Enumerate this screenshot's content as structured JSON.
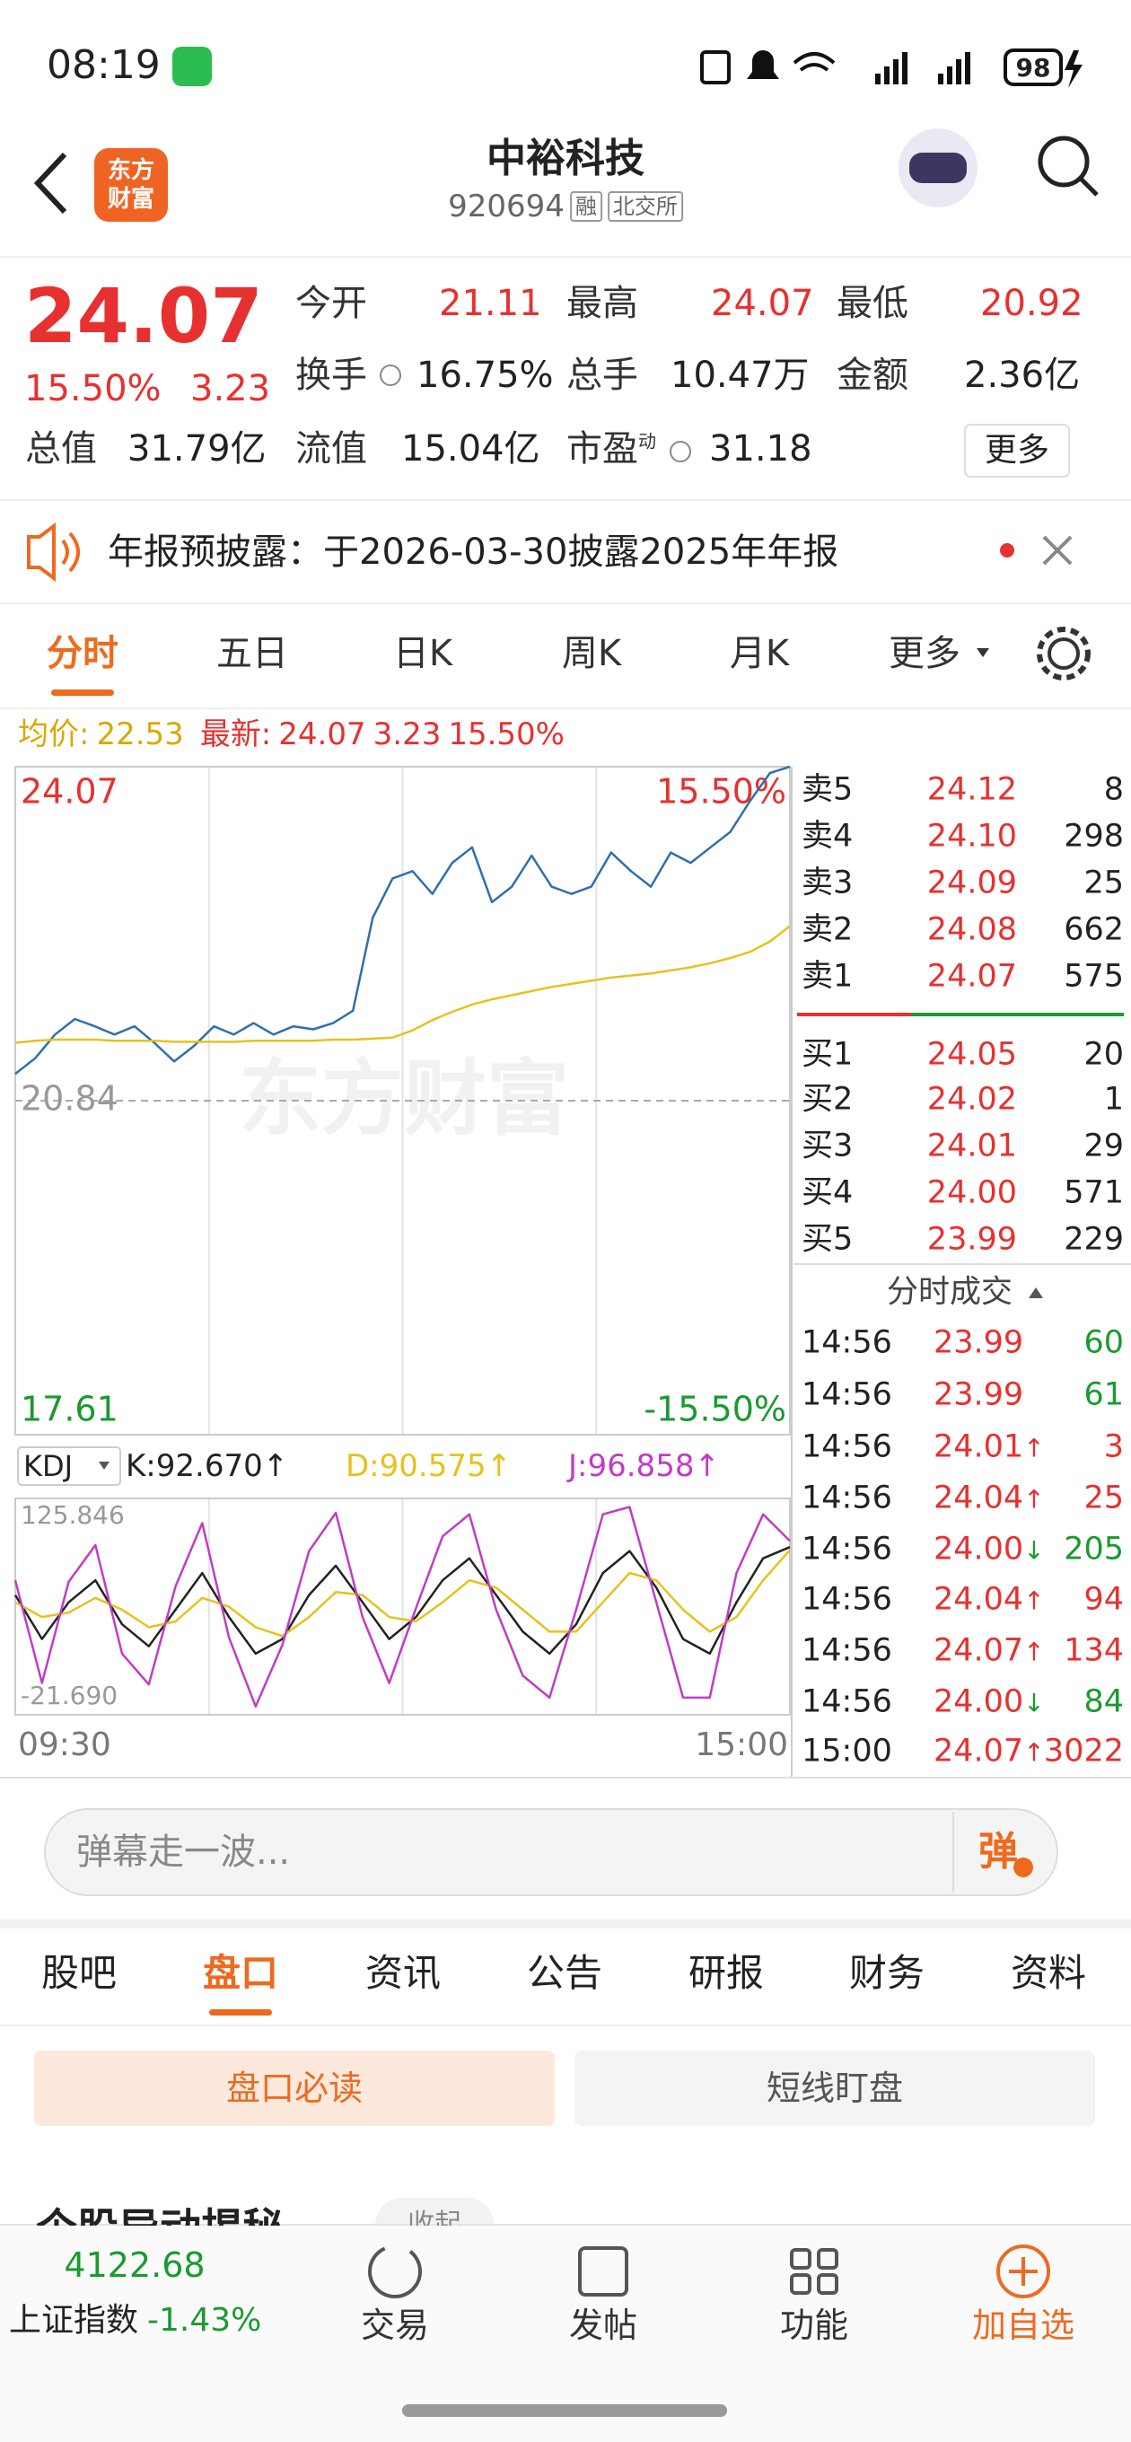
{
  "status_bar": {
    "time": "08:19",
    "battery": "98"
  },
  "header": {
    "logo": [
      "东方",
      "财富"
    ],
    "title": "中裕科技",
    "code": "920694",
    "tags": [
      "融",
      "北交所"
    ]
  },
  "quote": {
    "price": "24.07",
    "change_pct": "15.50%",
    "change": "3.23",
    "color": "#e63130",
    "fields": [
      {
        "label": "今开",
        "value": "21.11",
        "color": "#e63130"
      },
      {
        "label": "最高",
        "value": "24.07",
        "color": "#e63130"
      },
      {
        "label": "最低",
        "value": "20.92",
        "color": "#e63130"
      },
      {
        "label": "换手",
        "value": "16.75%"
      },
      {
        "label": "总手",
        "value": "10.47万"
      },
      {
        "label": "金额",
        "value": "2.36亿"
      },
      {
        "label": "总值",
        "value": "31.79亿"
      },
      {
        "label": "流值",
        "value": "15.04亿"
      },
      {
        "label": "市盈",
        "sup": "动",
        "value": "31.18"
      }
    ],
    "more": "更多"
  },
  "notice": {
    "text": "年报预披露：于2026-03-30披露2025年年报"
  },
  "tabs": {
    "items": [
      "分时",
      "五日",
      "日K",
      "周K",
      "月K",
      "更多"
    ],
    "active": 0
  },
  "chart_data": [
    {
      "type": "line",
      "watermark": "东方财富",
      "info": {
        "avg_label": "均价:",
        "avg": "22.53",
        "avg_color": "#d9a900",
        "latest_label": "最新:",
        "latest": "24.07",
        "change": "3.23",
        "change_pct": "15.50%",
        "latest_color": "#e63130"
      },
      "ylim": [
        17.61,
        24.07
      ],
      "yticks": [
        24.07,
        20.84,
        17.61
      ],
      "y2lim": [
        -15.5,
        15.5
      ],
      "y2ticks": [
        {
          "value": 15.5,
          "label": "15.50%"
        },
        {
          "value": -15.5,
          "label": "-15.50%"
        }
      ],
      "up_color": "#e63130",
      "down_color": "#1a9a2f",
      "flat_color": "#999999",
      "series": [
        {
          "color": "#2f6fb0",
          "values": [
            21.1,
            21.25,
            21.48,
            21.63,
            21.56,
            21.48,
            21.56,
            21.4,
            21.22,
            21.37,
            21.56,
            21.48,
            21.59,
            21.48,
            21.56,
            21.53,
            21.59,
            21.71,
            22.61,
            22.99,
            23.06,
            22.84,
            23.14,
            23.29,
            22.76,
            22.91,
            23.21,
            22.91,
            22.84,
            22.91,
            23.24,
            23.06,
            22.91,
            23.24,
            23.14,
            23.29,
            23.44,
            23.74,
            24.01,
            24.07
          ]
        },
        {
          "color": "#e6c21d",
          "values": [
            21.4,
            21.42,
            21.43,
            21.43,
            21.43,
            21.42,
            21.42,
            21.42,
            21.41,
            21.41,
            21.41,
            21.41,
            21.42,
            21.42,
            21.42,
            21.42,
            21.43,
            21.43,
            21.44,
            21.45,
            21.52,
            21.62,
            21.7,
            21.77,
            21.82,
            21.86,
            21.9,
            21.94,
            21.97,
            22.0,
            22.03,
            22.05,
            22.07,
            22.1,
            22.13,
            22.17,
            22.22,
            22.28,
            22.38,
            22.53
          ]
        }
      ]
    },
    {
      "type": "line",
      "indicator": "KDJ",
      "ylim": [
        -21.69,
        125.846
      ],
      "yticks": [
        125.846,
        {
          "value": -21.69,
          "label": "-21.690"
        }
      ],
      "time_labels": [
        "09:30",
        "15:00"
      ],
      "series": [
        {
          "name": "K:",
          "latest": "92.670",
          "trend": "↑",
          "color": "#222222",
          "values": [
            60,
            30,
            55,
            70,
            40,
            25,
            50,
            75,
            45,
            20,
            30,
            60,
            80,
            55,
            30,
            45,
            70,
            85,
            60,
            35,
            20,
            40,
            75,
            90,
            65,
            30,
            20,
            55,
            85,
            92.67
          ]
        },
        {
          "name": "D:",
          "latest": "90.575",
          "trend": "↑",
          "color": "#e6c21d",
          "values": [
            55,
            45,
            48,
            58,
            50,
            38,
            42,
            58,
            52,
            38,
            32,
            45,
            62,
            60,
            45,
            42,
            55,
            70,
            65,
            50,
            35,
            35,
            55,
            75,
            70,
            50,
            35,
            45,
            70,
            90.575
          ]
        },
        {
          "name": "J:",
          "latest": "96.858",
          "trend": "↑",
          "color": "#c13cc6",
          "values": [
            70,
            0,
            69,
            94,
            20,
            -1,
            66,
            109,
            31,
            -16,
            26,
            90,
            116,
            45,
            0,
            51,
            100,
            115,
            50,
            5,
            -10,
            50,
            115,
            120,
            55,
            -10,
            -10,
            75,
            115,
            96.858
          ]
        }
      ]
    }
  ],
  "order_book": {
    "price_color": "#e63130",
    "asks": [
      {
        "label": "卖5",
        "price": "24.12",
        "volume": "8"
      },
      {
        "label": "卖4",
        "price": "24.10",
        "volume": "298"
      },
      {
        "label": "卖3",
        "price": "24.09",
        "volume": "25"
      },
      {
        "label": "卖2",
        "price": "24.08",
        "volume": "662"
      },
      {
        "label": "卖1",
        "price": "24.07",
        "volume": "575"
      }
    ],
    "bids": [
      {
        "label": "买1",
        "price": "24.05",
        "volume": "20"
      },
      {
        "label": "买2",
        "price": "24.02",
        "volume": "1"
      },
      {
        "label": "买3",
        "price": "24.01",
        "volume": "29"
      },
      {
        "label": "买4",
        "price": "24.00",
        "volume": "571"
      },
      {
        "label": "买5",
        "price": "23.99",
        "volume": "229"
      }
    ],
    "trades_title": "分时成交",
    "trades": [
      {
        "time": "14:56",
        "price": "23.99",
        "volume": "60",
        "side": "sell"
      },
      {
        "time": "14:56",
        "price": "23.99",
        "volume": "61",
        "side": "sell"
      },
      {
        "time": "14:56",
        "price": "24.01",
        "arrow": "↑",
        "volume": "3",
        "side": "buy"
      },
      {
        "time": "14:56",
        "price": "24.04",
        "arrow": "↑",
        "volume": "25",
        "side": "buy"
      },
      {
        "time": "14:56",
        "price": "24.00",
        "arrow": "↓",
        "volume": "205",
        "side": "sell"
      },
      {
        "time": "14:56",
        "price": "24.04",
        "arrow": "↑",
        "volume": "94",
        "side": "buy"
      },
      {
        "time": "14:56",
        "price": "24.07",
        "arrow": "↑",
        "volume": "134",
        "side": "buy"
      },
      {
        "time": "14:56",
        "price": "24.00",
        "arrow": "↓",
        "volume": "84",
        "side": "sell"
      },
      {
        "time": "15:00",
        "price": "24.07",
        "arrow": "↑",
        "volume": "3022",
        "side": "buy"
      }
    ]
  },
  "chat": {
    "placeholder": "弹幕走一波...",
    "button": "弹"
  },
  "section_tabs": {
    "items": [
      "股吧",
      "盘口",
      "资讯",
      "公告",
      "研报",
      "财务",
      "资料"
    ],
    "active": 1
  },
  "sub_tabs": {
    "items": [
      "盘口必读",
      "短线盯盘"
    ],
    "active": 0
  },
  "section_peek": {
    "title": "个股异动揭秘",
    "tag": "收起"
  },
  "bottom_nav": {
    "index_value": "4122.68",
    "index_name": "上证指数",
    "index_change": "-1.43%",
    "index_color": "#1a9a2f",
    "items": [
      "交易",
      "发帖",
      "功能",
      "加自选"
    ],
    "highlight": 3
  }
}
